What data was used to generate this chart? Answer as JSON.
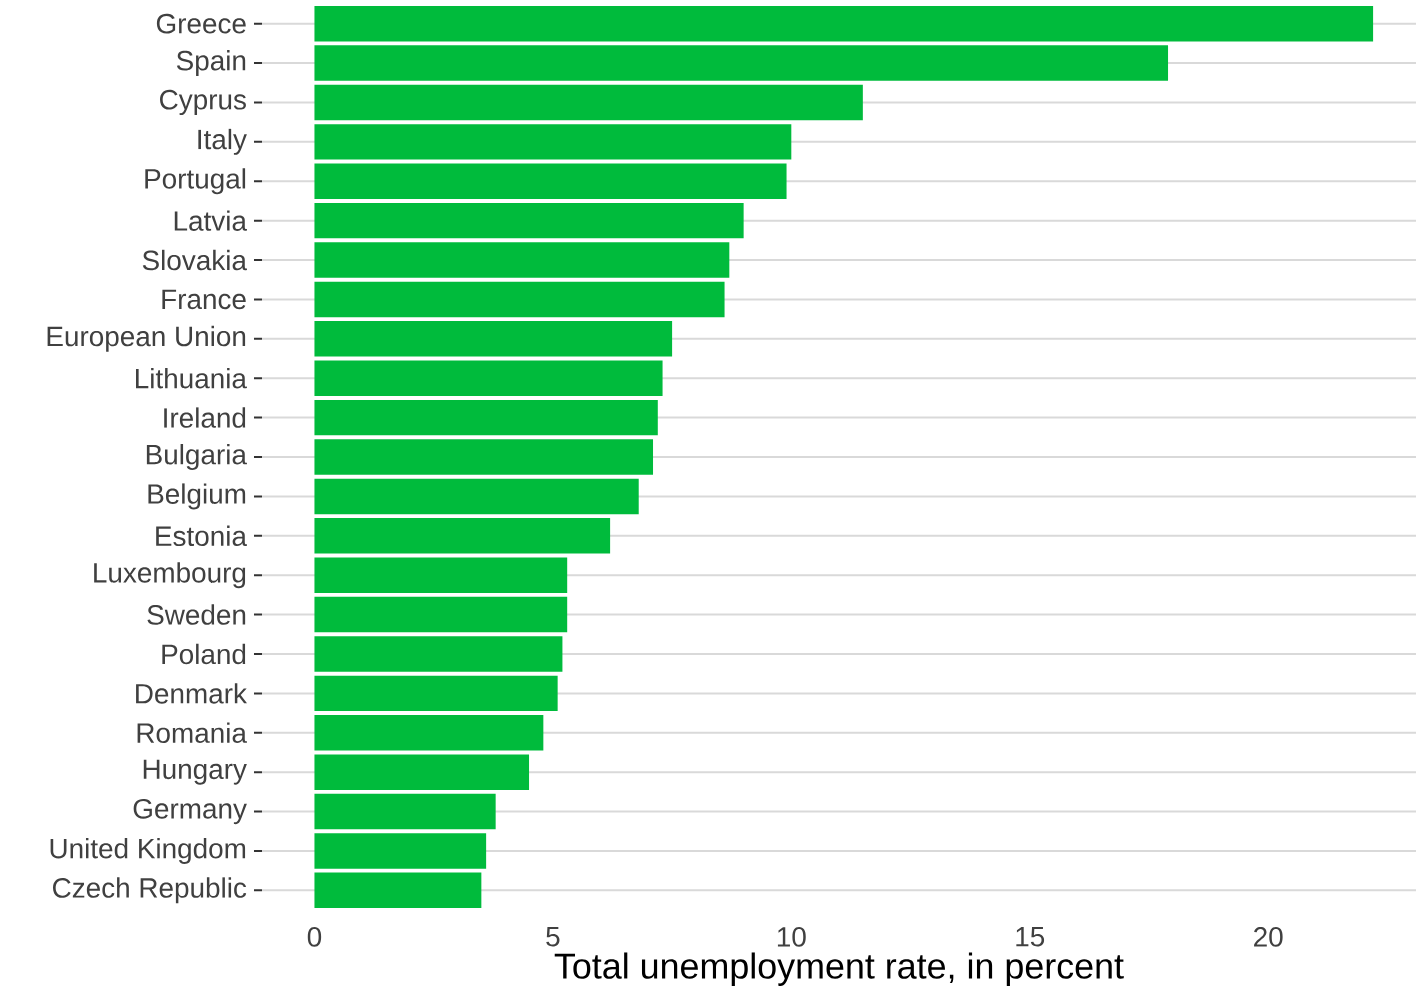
{
  "chart_data": {
    "type": "bar",
    "orientation": "horizontal",
    "xlabel": "Total unemployment rate, in percent",
    "categories": [
      "Greece",
      "Spain",
      "Cyprus",
      "Italy",
      "Portugal",
      "Latvia",
      "Slovakia",
      "France",
      "European Union",
      "Lithuania",
      "Ireland",
      "Bulgaria",
      "Belgium",
      "Estonia",
      "Luxembourg",
      "Sweden",
      "Poland",
      "Denmark",
      "Romania",
      "Hungary",
      "Germany",
      "United Kingdom",
      "Czech Republic"
    ],
    "values": [
      22.2,
      17.9,
      11.5,
      10.0,
      9.9,
      9.0,
      8.7,
      8.6,
      7.5,
      7.3,
      7.2,
      7.1,
      6.8,
      6.2,
      5.3,
      5.3,
      5.2,
      5.1,
      4.8,
      4.5,
      3.8,
      3.6,
      3.5
    ],
    "color": "#00bb3c",
    "xlim": [
      -1.1,
      23.1
    ],
    "xticks": [
      0,
      5,
      10,
      15,
      20
    ],
    "grid": "y"
  }
}
